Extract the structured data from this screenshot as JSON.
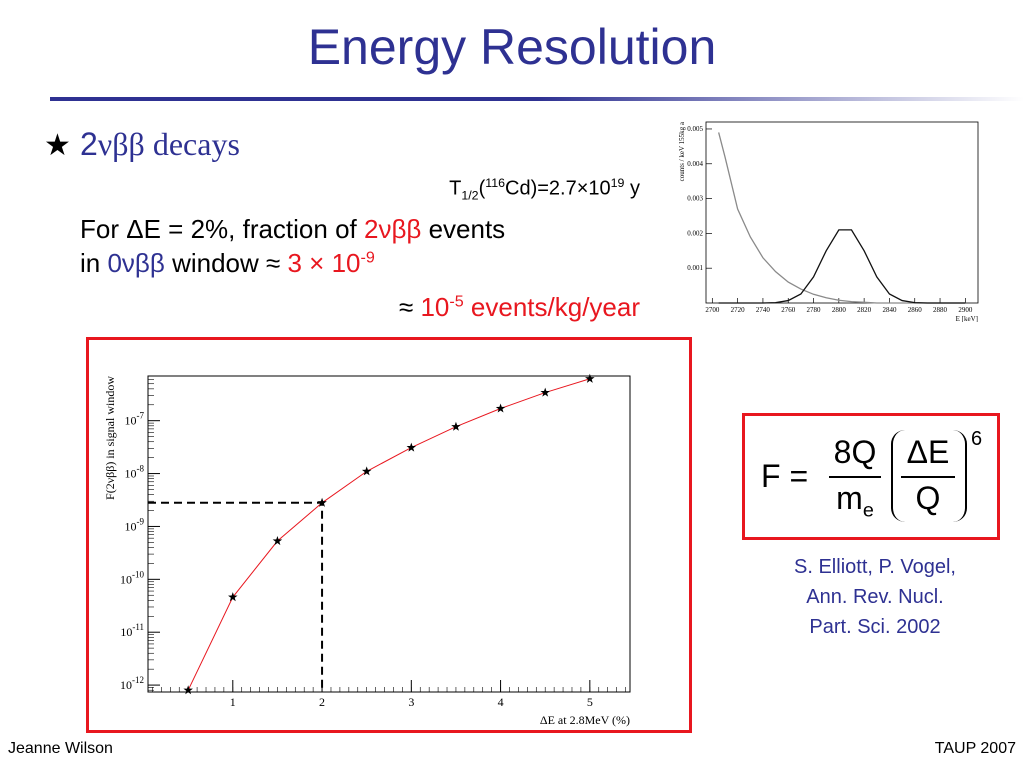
{
  "header": {
    "title": "Energy Resolution"
  },
  "bullet": {
    "symbol": "★",
    "number": "2",
    "text": "νββ decays"
  },
  "half_life": {
    "parts": [
      "T",
      "1/2",
      "(",
      "116",
      "Cd)=2.7×10",
      "19",
      " y"
    ]
  },
  "estimate": {
    "line1": [
      "For ΔE = 2%, fraction of ",
      "2νββ",
      " events"
    ],
    "line2": [
      "in ",
      "0νββ",
      " window ≈ ",
      "3 × 10",
      "-9"
    ],
    "line3": [
      "≈ ",
      "10",
      "-5",
      " events/kg/year"
    ]
  },
  "formula": {
    "lhs": "F =",
    "num": "8Q",
    "den": "m",
    "den_sub": "e",
    "inner_num": "ΔE",
    "inner_den": "Q",
    "power": "6"
  },
  "citation": [
    "S. Elliott, P. Vogel,",
    "Ann. Rev. Nucl.",
    "Part. Sci. 2002"
  ],
  "footer": {
    "left": "Jeanne Wilson",
    "right": "TAUP 2007"
  },
  "chart_data": [
    {
      "type": "line",
      "x_label": "E [keV]",
      "y_label": "counts / keV 155kg a",
      "x": [
        2705,
        2710,
        2720,
        2730,
        2740,
        2750,
        2760,
        2770,
        2780,
        2790,
        2800,
        2810,
        2820,
        2830,
        2840,
        2850,
        2860,
        2870,
        2880,
        2890,
        2900
      ],
      "series": [
        {
          "color": "#8a8a8a",
          "values": [
            0.0049,
            0.0042,
            0.0027,
            0.0019,
            0.0013,
            0.0009,
            0.0006,
            0.0004,
            0.00025,
            0.00015,
            8e-05,
            4e-05,
            2e-05,
            0,
            0,
            0,
            0,
            0,
            0,
            0,
            0
          ]
        },
        {
          "color": "#111111",
          "values": [
            0,
            0,
            0,
            0,
            0,
            1e-05,
            7e-05,
            0.00026,
            0.00075,
            0.0015,
            0.0021,
            0.0021,
            0.0015,
            0.00075,
            0.00026,
            7e-05,
            1e-05,
            0,
            0,
            0,
            0
          ]
        }
      ],
      "xlim": [
        2695,
        2910
      ],
      "ylim": [
        0,
        0.0052
      ],
      "xticks": [
        2700,
        2720,
        2740,
        2760,
        2780,
        2800,
        2820,
        2840,
        2860,
        2880,
        2900
      ],
      "yticks": [
        0.001,
        0.002,
        0.003,
        0.004,
        0.005
      ]
    },
    {
      "type": "scatter",
      "x_label": "ΔE at 2.8MeV (%)",
      "y_label": "F(2νββ) in signal window",
      "log_y": true,
      "marker": "star",
      "line_color": "#e8171f",
      "color": "#000000",
      "x": [
        0.5,
        1,
        1.5,
        2,
        2.5,
        3,
        3.5,
        4,
        4.5,
        5
      ],
      "values": [
        8e-13,
        4.6e-11,
        5.3e-10,
        2.8e-09,
        1.1e-08,
        3.1e-08,
        7.7e-08,
        1.7e-07,
        3.4e-07,
        6.2e-07
      ],
      "xlim": [
        0.05,
        5.45
      ],
      "ylim": [
        7.4e-13,
        7e-07
      ],
      "xticks": [
        1,
        2,
        3,
        4,
        5
      ],
      "yticks": [
        {
          "value": 1e-12,
          "label": "10-12"
        },
        {
          "value": 1e-11,
          "label": "10-11"
        },
        {
          "value": 1e-10,
          "label": "10-10"
        },
        {
          "value": 1e-09,
          "label": "10-9"
        },
        {
          "value": 1e-08,
          "label": "10-8"
        },
        {
          "value": 1e-07,
          "label": "10-7"
        }
      ]
    }
  ]
}
